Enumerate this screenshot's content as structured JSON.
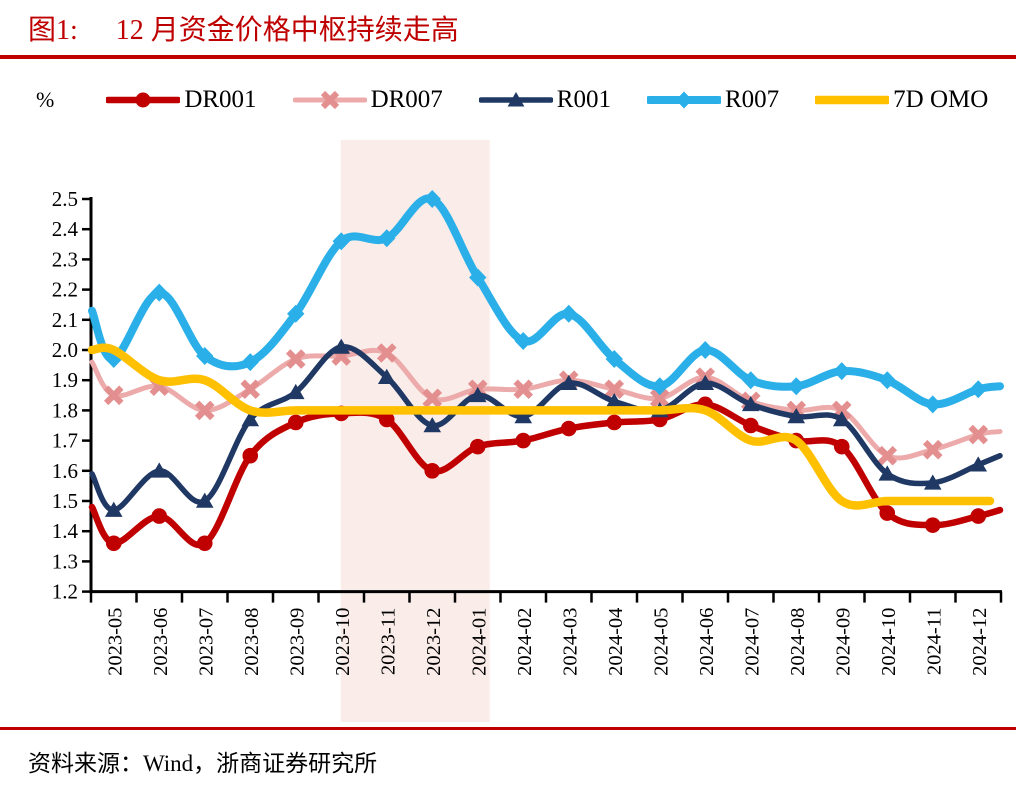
{
  "title": {
    "prefix": "图1:",
    "text": "12 月资金价格中枢持续走高"
  },
  "percent_label": "%",
  "source_text": "资料来源：Wind，浙商证券研究所",
  "colors": {
    "accent_red": "#BF0000",
    "axis_black": "#000000",
    "highlight_band": "#FAEDE9",
    "background": "#FFFFFF"
  },
  "chart_data": {
    "type": "line",
    "title": "12 月资金价格中枢持续走高",
    "unit": "%",
    "grid": false,
    "legend_position": "top",
    "ylim": [
      1.2,
      2.5
    ],
    "ytick_step": 0.1,
    "y_tick_labels": [
      "2.5",
      "2.4",
      "2.3",
      "2.2",
      "2.1",
      "2.0",
      "1.9",
      "1.8",
      "1.7",
      "1.6",
      "1.5",
      "1.4",
      "1.3",
      "1.2"
    ],
    "categories": [
      "2023-05",
      "2023-06",
      "2023-07",
      "2023-08",
      "2023-09",
      "2023-10",
      "2023-11",
      "2023-12",
      "2024-01",
      "2024-02",
      "2024-03",
      "2024-04",
      "2024-05",
      "2024-06",
      "2024-07",
      "2024-08",
      "2024-09",
      "2024-10",
      "2024-11",
      "2024-12"
    ],
    "highlight_band": {
      "from": "2023-10",
      "to": "2024-01"
    },
    "series": [
      {
        "name": "DR001",
        "color": "#C00000",
        "marker_color": "#C00000",
        "marker": "circle",
        "line_width": 6.5,
        "values": [
          1.36,
          1.45,
          1.36,
          1.65,
          1.76,
          1.79,
          1.77,
          1.6,
          1.68,
          1.7,
          1.74,
          1.76,
          1.77,
          1.82,
          1.75,
          1.7,
          1.68,
          1.46,
          1.42,
          1.45
        ],
        "edge_left": 1.48,
        "edge_right": 1.47
      },
      {
        "name": "DR007",
        "color": "#ECAAAA",
        "marker_color": "#E48F8F",
        "marker": "x",
        "line_width": 5,
        "values": [
          1.85,
          1.88,
          1.8,
          1.87,
          1.97,
          1.98,
          1.99,
          1.84,
          1.87,
          1.87,
          1.9,
          1.87,
          1.84,
          1.91,
          1.83,
          1.8,
          1.8,
          1.65,
          1.67,
          1.72
        ],
        "edge_left": 1.96,
        "edge_right": 1.73
      },
      {
        "name": "R001",
        "color": "#1F3864",
        "marker_color": "#1F3864",
        "marker": "triangle",
        "line_width": 5.5,
        "values": [
          1.47,
          1.6,
          1.5,
          1.77,
          1.86,
          2.01,
          1.91,
          1.75,
          1.85,
          1.78,
          1.89,
          1.83,
          1.8,
          1.89,
          1.82,
          1.78,
          1.77,
          1.59,
          1.56,
          1.62
        ],
        "edge_left": 1.59,
        "edge_right": 1.65
      },
      {
        "name": "R007",
        "color": "#2BAFE8",
        "marker_color": "#2BAFE8",
        "marker": "diamond",
        "line_width": 8,
        "values": [
          1.97,
          2.19,
          1.98,
          1.96,
          2.12,
          2.36,
          2.37,
          2.5,
          2.24,
          2.03,
          2.12,
          1.97,
          1.88,
          2.0,
          1.9,
          1.88,
          1.93,
          1.9,
          1.82,
          1.87
        ],
        "edge_left": 2.13,
        "edge_right": 1.88
      },
      {
        "name": "7D OMO",
        "color": "#FFC000",
        "marker_color": "#FFC000",
        "marker": "none",
        "line_width": 8.5,
        "values": [
          2.0,
          1.9,
          1.9,
          1.8,
          1.8,
          1.8,
          1.8,
          1.8,
          1.8,
          1.8,
          1.8,
          1.8,
          1.8,
          1.8,
          1.7,
          1.7,
          1.5,
          1.5,
          1.5,
          1.5
        ],
        "edge_left": 2.0,
        "edge_right": 1.5
      }
    ]
  }
}
